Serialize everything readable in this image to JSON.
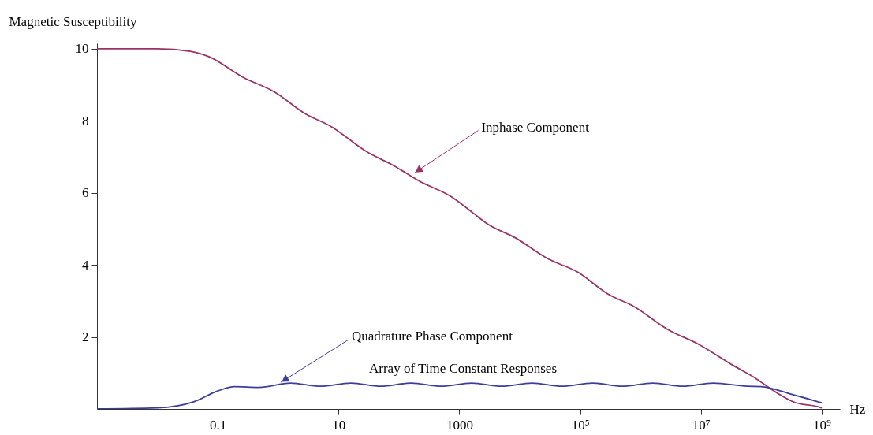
{
  "chart_data": {
    "type": "line",
    "xlabel": "Hz",
    "ylabel": "Magnetic Susceptibility",
    "log": "x",
    "xlim": [
      0.001,
      2000000000
    ],
    "ylim": [
      0,
      10.15
    ],
    "xticks": [
      0.1,
      10,
      1000,
      {
        "value": 100000,
        "label": "10⁵"
      },
      {
        "value": 10000000,
        "label": "10⁷"
      },
      {
        "value": 1000000000,
        "label": "10⁹"
      }
    ],
    "yticks": [
      2,
      4,
      6,
      8,
      10
    ],
    "series": [
      {
        "color": "#993366",
        "x": [
          0.001,
          0.01,
          0.035,
          0.071,
          0.26,
          0.87,
          2.9,
          7.2,
          30,
          81,
          220,
          740,
          1660,
          2900,
          8500,
          30000,
          89000,
          290000,
          790000,
          2800000,
          9300000,
          35000000,
          81000000,
          140000000,
          360000000,
          950000000,
          1000000000
        ],
        "values": [
          10,
          10,
          9.93,
          9.78,
          9.21,
          8.8,
          8.18,
          7.86,
          7.13,
          6.76,
          6.32,
          5.89,
          5.45,
          5.14,
          4.75,
          4.16,
          3.81,
          3.19,
          2.84,
          2.21,
          1.79,
          1.2,
          0.85,
          0.57,
          0.18,
          0.04,
          0.02
        ]
      },
      {
        "color": "#3d3d9e",
        "x": [
          0.001,
          0.01,
          0.04,
          0.1,
          0.19,
          0.48,
          1.6,
          5,
          16,
          50,
          160,
          500,
          1600,
          5000,
          16000,
          50000,
          160000,
          500000,
          1600000,
          5000000,
          16000000,
          58000000,
          100000000,
          300000000,
          1000000000
        ],
        "values": [
          0,
          0.03,
          0.2,
          0.5,
          0.62,
          0.6,
          0.72,
          0.63,
          0.72,
          0.63,
          0.72,
          0.63,
          0.72,
          0.63,
          0.72,
          0.63,
          0.72,
          0.63,
          0.72,
          0.63,
          0.72,
          0.63,
          0.62,
          0.42,
          0.17
        ]
      }
    ],
    "annotations": [
      {
        "text": "Inphase Component",
        "x": 180,
        "y": 6.55
      },
      {
        "text": "Quadrature Phase Component",
        "x": 1.1,
        "y": 0.74
      },
      "Array of Time Constant Responses"
    ]
  }
}
